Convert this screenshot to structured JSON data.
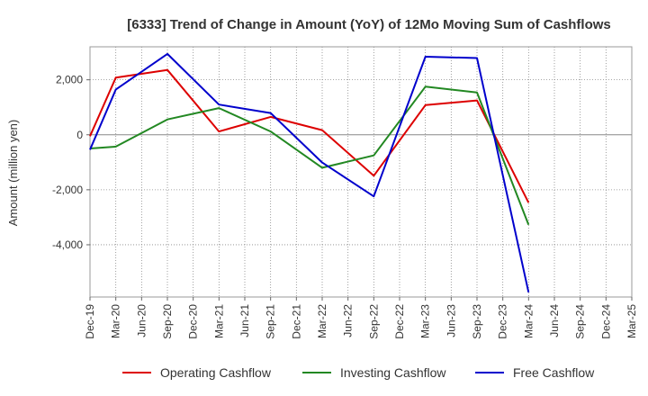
{
  "chart_data": {
    "type": "line",
    "title": "[6333]  Trend of Change in Amount (YoY) of 12Mo Moving Sum of Cashflows",
    "xlabel": "",
    "ylabel": "Amount (million yen)",
    "ylim": [
      -5900,
      3200
    ],
    "yticks": [
      2000,
      0,
      -2000,
      -4000
    ],
    "ytick_labels": [
      "2,000",
      "0",
      "-2,000",
      "-4,000"
    ],
    "categories": [
      "Dec-19",
      "Mar-20",
      "Jun-20",
      "Sep-20",
      "Dec-20",
      "Mar-21",
      "Jun-21",
      "Sep-21",
      "Dec-21",
      "Mar-22",
      "Jun-22",
      "Sep-22",
      "Dec-22",
      "Mar-23",
      "Jun-23",
      "Sep-23",
      "Dec-23",
      "Mar-24",
      "Jun-24",
      "Sep-24",
      "Dec-24",
      "Mar-25"
    ],
    "grid": true,
    "legend_position": "bottom",
    "series": [
      {
        "name": "Operating Cashflow",
        "color": "#dd0000",
        "values": [
          -50,
          2080,
          null,
          2360,
          null,
          120,
          null,
          650,
          null,
          170,
          null,
          -1490,
          null,
          1080,
          null,
          1250,
          null,
          -2470,
          null,
          null,
          null,
          null
        ]
      },
      {
        "name": "Investing Cashflow",
        "color": "#228822",
        "values": [
          -500,
          -430,
          null,
          560,
          null,
          970,
          null,
          120,
          null,
          -1200,
          null,
          -750,
          null,
          1750,
          null,
          1540,
          null,
          -3270,
          null,
          null,
          null,
          null
        ]
      },
      {
        "name": "Free Cashflow",
        "color": "#0000cc",
        "values": [
          -540,
          1650,
          null,
          2940,
          null,
          1100,
          null,
          790,
          null,
          -1010,
          null,
          -2240,
          null,
          2840,
          null,
          2790,
          null,
          -5730,
          null,
          null,
          null,
          null
        ]
      }
    ]
  }
}
